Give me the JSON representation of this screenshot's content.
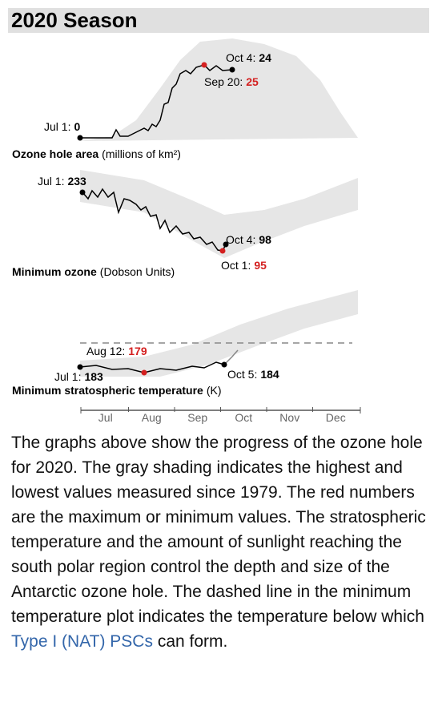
{
  "header": {
    "title": "2020 Season"
  },
  "panels": [
    {
      "title": "Ozone hole area",
      "units": "(millions of km²)",
      "annotations": [
        {
          "label": "Jul 1:",
          "value": 0,
          "color": "#000000"
        },
        {
          "label": "Oct 4:",
          "value": 24,
          "color": "#000000"
        },
        {
          "label": "Sep 20:",
          "value": 25,
          "color": "#d42020"
        }
      ]
    },
    {
      "title": "Minimum ozone",
      "units": "(Dobson Units)",
      "annotations": [
        {
          "label": "Jul 1:",
          "value": 233,
          "color": "#000000"
        },
        {
          "label": "Oct 4:",
          "value": 98,
          "color": "#000000"
        },
        {
          "label": "Oct 1:",
          "value": 95,
          "color": "#d42020"
        }
      ]
    },
    {
      "title": "Minimum stratospheric temperature",
      "units": "(K)",
      "annotations": [
        {
          "label": "Aug 12:",
          "value": 179,
          "color": "#d42020"
        },
        {
          "label": "Jul 1:",
          "value": 183,
          "color": "#000000"
        },
        {
          "label": "Oct 5:",
          "value": 184,
          "color": "#000000"
        }
      ]
    }
  ],
  "months": [
    "Jul",
    "Aug",
    "Sep",
    "Oct",
    "Nov",
    "Dec"
  ],
  "paragraph": {
    "text_before": "The graphs above show the progress of the ozone hole for 2020. The gray shading indicates the highest and lowest values measured since 1979. The red numbers are the maximum or minimum values. The stratospheric temperature and the amount of sunlight reaching the south polar region control the depth and size of the Antarctic ozone hole. The dashed line in the minimum temperature plot indicates the temperature below which ",
    "link": "Type I (NAT) PSCs",
    "text_after": " can form."
  }
}
